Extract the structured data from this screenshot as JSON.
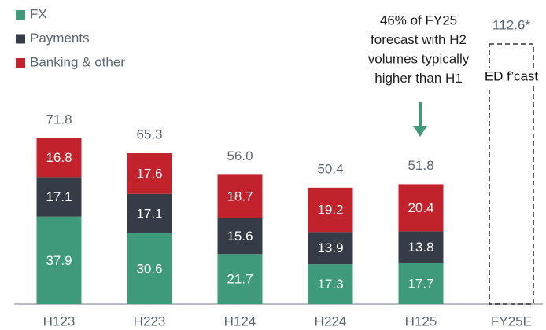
{
  "chart_data": {
    "type": "stacked_bar",
    "categories": [
      "H123",
      "H223",
      "H124",
      "H224",
      "H125",
      "FY25E"
    ],
    "series": [
      {
        "name": "FX",
        "color": "#3e9a7b",
        "values": [
          37.9,
          30.6,
          21.7,
          17.3,
          17.7,
          null
        ]
      },
      {
        "name": "Payments",
        "color": "#353b47",
        "values": [
          17.1,
          17.1,
          15.6,
          13.9,
          13.8,
          null
        ]
      },
      {
        "name": "Banking & other",
        "color": "#c1222c",
        "values": [
          16.8,
          17.6,
          18.7,
          19.2,
          20.4,
          null
        ]
      }
    ],
    "totals": {
      "values": [
        71.8,
        65.3,
        56,
        50.4,
        51.8,
        112.6
      ],
      "value_labels": [
        "71.8",
        "65.3",
        "56.0",
        "50.4",
        "51.8",
        "112.6*"
      ]
    },
    "forecast_label": "ED f’cast",
    "annotation": [
      "46% of FY25",
      "forecast with H2",
      "volumes typically",
      "higher than H1"
    ],
    "legend": "top-left"
  }
}
